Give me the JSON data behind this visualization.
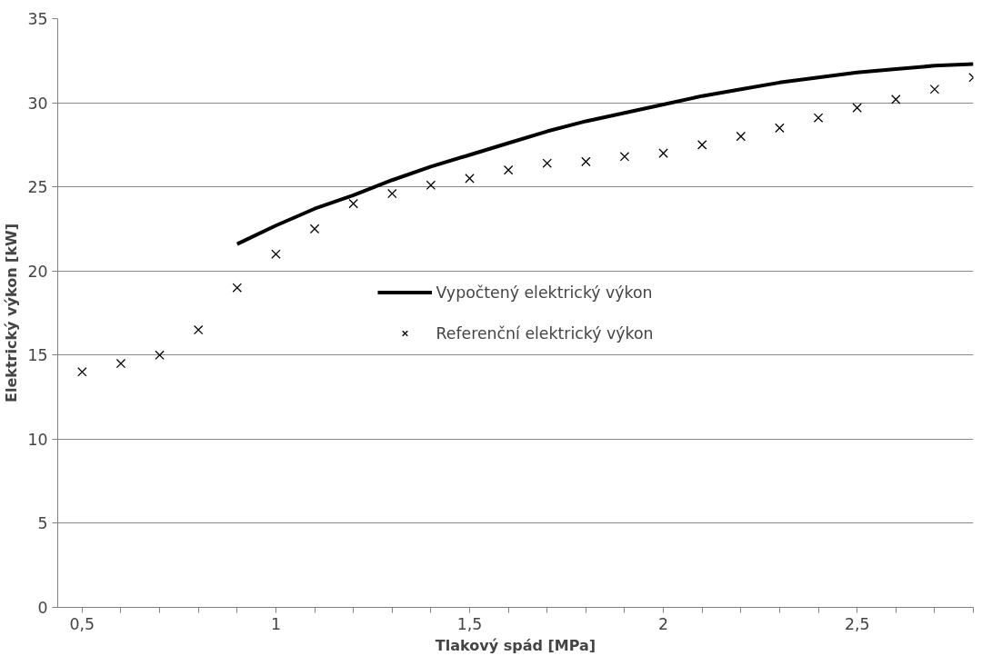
{
  "chart_data": {
    "type": "scatter",
    "xlabel": "Tlakový spád [MPa]",
    "ylabel": "Elektrický výkon [kW]",
    "xlim": [
      0.437,
      2.8
    ],
    "ylim": [
      0,
      35
    ],
    "xticks": [
      {
        "value": 0.5,
        "label": "0,5"
      },
      {
        "value": 0.6,
        "label": null
      },
      {
        "value": 0.7,
        "label": null
      },
      {
        "value": 0.8,
        "label": null
      },
      {
        "value": 0.9,
        "label": null
      },
      {
        "value": 1,
        "label": "1"
      },
      {
        "value": 1.1,
        "label": null
      },
      {
        "value": 1.2,
        "label": null
      },
      {
        "value": 1.3,
        "label": null
      },
      {
        "value": 1.4,
        "label": null
      },
      {
        "value": 1.5,
        "label": "1,5"
      },
      {
        "value": 1.6,
        "label": null
      },
      {
        "value": 1.7,
        "label": null
      },
      {
        "value": 1.8,
        "label": null
      },
      {
        "value": 1.9,
        "label": null
      },
      {
        "value": 2,
        "label": "2"
      },
      {
        "value": 2.1,
        "label": null
      },
      {
        "value": 2.2,
        "label": null
      },
      {
        "value": 2.3,
        "label": null
      },
      {
        "value": 2.4,
        "label": null
      },
      {
        "value": 2.5,
        "label": "2,5"
      },
      {
        "value": 2.6,
        "label": null
      },
      {
        "value": 2.7,
        "label": null
      },
      {
        "value": 2.8,
        "label": null
      }
    ],
    "yticks": [
      0,
      5,
      10,
      15,
      20,
      25,
      30,
      35
    ],
    "grid": "y",
    "legend": "center",
    "series": [
      {
        "name": "Vypočtený elektrický výkon",
        "type": "line",
        "color": "#000000",
        "line_style": "solid",
        "marker": "none",
        "x": [
          0.9,
          1.0,
          1.1,
          1.2,
          1.3,
          1.4,
          1.5,
          1.6,
          1.7,
          1.8,
          1.9,
          2.0,
          2.1,
          2.2,
          2.3,
          2.4,
          2.5,
          2.6,
          2.7,
          2.8
        ],
        "values": [
          21.6,
          22.7,
          23.7,
          24.5,
          25.4,
          26.2,
          26.9,
          27.6,
          28.3,
          28.9,
          29.4,
          29.9,
          30.4,
          30.8,
          31.2,
          31.5,
          31.8,
          32.0,
          32.2,
          32.3
        ]
      },
      {
        "name": "Referenční elektrický výkon",
        "color": "#000000",
        "marker": "cross",
        "x": [
          0.5,
          0.6,
          0.7,
          0.8,
          0.9,
          1.0,
          1.1,
          1.2,
          1.3,
          1.4,
          1.5,
          1.6,
          1.7,
          1.8,
          1.9,
          2.0,
          2.1,
          2.2,
          2.3,
          2.4,
          2.5,
          2.6,
          2.7,
          2.8
        ],
        "values": [
          14,
          14.5,
          15,
          16.5,
          19,
          21,
          22.5,
          24,
          24.6,
          25.1,
          25.5,
          26,
          26.4,
          26.5,
          26.8,
          27,
          27.5,
          28,
          28.5,
          29.1,
          29.7,
          30.2,
          30.8,
          31.5
        ]
      }
    ]
  }
}
